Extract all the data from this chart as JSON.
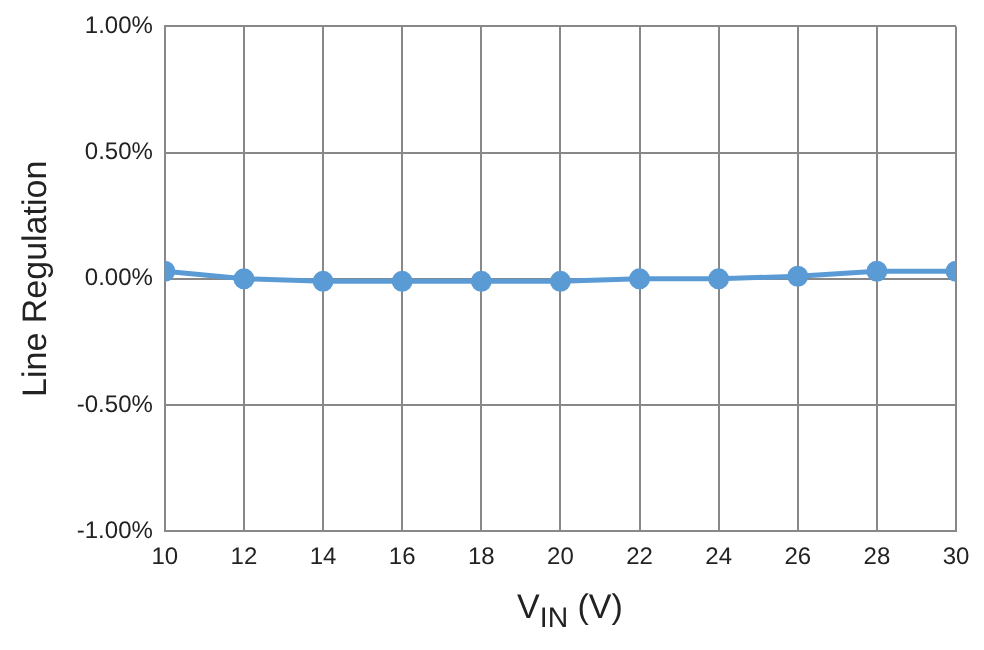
{
  "chart_data": {
    "type": "line",
    "xlabel": "V$_{IN}$ (V)",
    "ylabel": "Line Regulation",
    "x": [
      10,
      12,
      14,
      16,
      18,
      20,
      22,
      24,
      26,
      28,
      30
    ],
    "series": [
      {
        "color": "#5b9bd5",
        "values": [
          0.03,
          0.0,
          -0.01,
          -0.01,
          -0.01,
          -0.01,
          0.0,
          0.0,
          0.01,
          0.03,
          0.03
        ]
      }
    ],
    "xlim": [
      10,
      30
    ],
    "xticks": [
      10,
      12,
      14,
      16,
      18,
      20,
      22,
      24,
      26,
      28,
      30
    ],
    "ylim": [
      -1,
      1
    ],
    "yticks": [
      {
        "value": -1,
        "label": "-1.00%"
      },
      {
        "value": -0.5,
        "label": "-0.50%"
      },
      {
        "value": 0,
        "label": "0.00%"
      },
      {
        "value": 0.5,
        "label": "0.50%"
      },
      {
        "value": 1,
        "label": "1.00%"
      }
    ],
    "grid": true,
    "legend": false,
    "marker": "circle",
    "line_style": "solid"
  }
}
